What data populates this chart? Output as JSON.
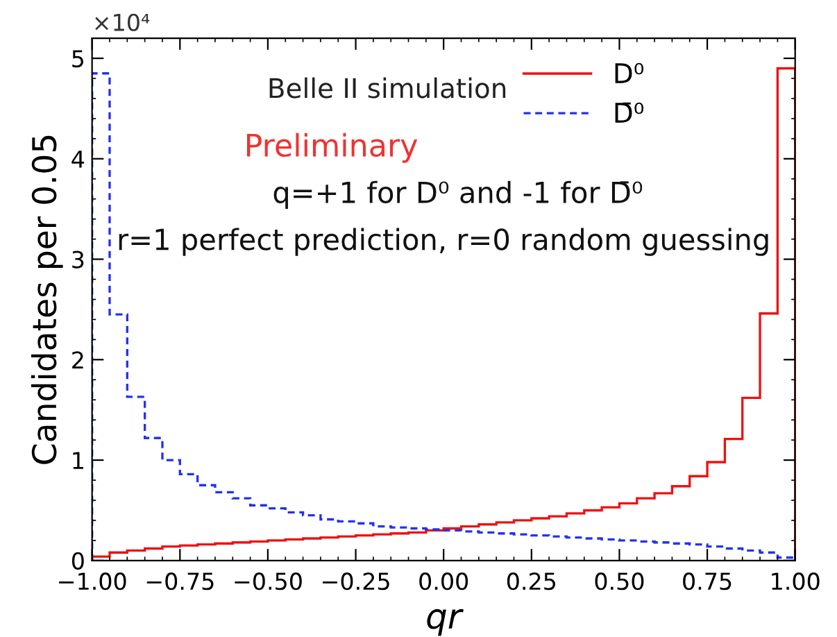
{
  "chart_data": {
    "type": "histogram",
    "xlabel": "qr",
    "ylabel": "Candidates per 0.05",
    "bins": [
      -1.0,
      -0.95,
      -0.9,
      -0.85,
      -0.8,
      -0.75,
      -0.7,
      -0.65,
      -0.6,
      -0.55,
      -0.5,
      -0.45,
      -0.4,
      -0.35,
      -0.3,
      -0.25,
      -0.2,
      -0.15,
      -0.1,
      -0.05,
      0.0,
      0.05,
      0.1,
      0.15,
      0.2,
      0.25,
      0.3,
      0.35,
      0.4,
      0.45,
      0.5,
      0.55,
      0.6,
      0.65,
      0.7,
      0.75,
      0.8,
      0.85,
      0.9,
      0.95,
      1.0
    ],
    "series": [
      {
        "name": "D⁰",
        "color": "#ee1111",
        "line_style": "solid",
        "values": [
          0.04,
          0.08,
          0.1,
          0.12,
          0.14,
          0.15,
          0.16,
          0.17,
          0.18,
          0.19,
          0.2,
          0.21,
          0.22,
          0.23,
          0.24,
          0.25,
          0.26,
          0.27,
          0.28,
          0.3,
          0.32,
          0.34,
          0.36,
          0.38,
          0.4,
          0.42,
          0.44,
          0.47,
          0.5,
          0.53,
          0.57,
          0.62,
          0.67,
          0.74,
          0.84,
          0.98,
          1.21,
          1.62,
          2.46,
          4.9
        ]
      },
      {
        "name": "D̄⁰",
        "color": "#2233ee",
        "line_style": "dashed",
        "values": [
          4.85,
          2.45,
          1.63,
          1.22,
          1.0,
          0.86,
          0.75,
          0.68,
          0.62,
          0.55,
          0.52,
          0.48,
          0.45,
          0.41,
          0.39,
          0.37,
          0.34,
          0.33,
          0.32,
          0.31,
          0.3,
          0.29,
          0.28,
          0.27,
          0.26,
          0.25,
          0.24,
          0.23,
          0.22,
          0.21,
          0.2,
          0.19,
          0.18,
          0.17,
          0.16,
          0.14,
          0.12,
          0.1,
          0.08,
          0.03
        ]
      }
    ],
    "xlim": [
      -1.0,
      1.0
    ],
    "ylim": [
      0,
      5.2
    ],
    "xticks": [
      {
        "value": -1.0,
        "label": "−1.00"
      },
      {
        "value": -0.75,
        "label": "−0.75"
      },
      {
        "value": -0.5,
        "label": "−0.50"
      },
      {
        "value": -0.25,
        "label": "−0.25"
      },
      {
        "value": 0.0,
        "label": "0.00"
      },
      {
        "value": 0.25,
        "label": "0.25"
      },
      {
        "value": 0.5,
        "label": "0.50"
      },
      {
        "value": 0.75,
        "label": "0.75"
      },
      {
        "value": 1.0,
        "label": "1.00"
      }
    ],
    "yticks": [
      0,
      1,
      2,
      3,
      4,
      5
    ],
    "legend": "top right",
    "grid": false,
    "annotations": [
      "×10⁴",
      "Belle II simulation",
      "Preliminary",
      "q=+1 for D⁰ and -1 for D̄⁰",
      "r=1 perfect prediction, r=0 random guessing"
    ]
  }
}
